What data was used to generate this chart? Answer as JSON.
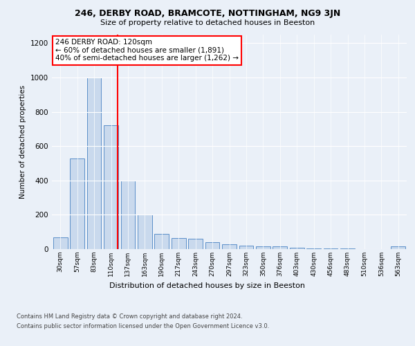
{
  "title1": "246, DERBY ROAD, BRAMCOTE, NOTTINGHAM, NG9 3JN",
  "title2": "Size of property relative to detached houses in Beeston",
  "xlabel": "Distribution of detached houses by size in Beeston",
  "ylabel": "Number of detached properties",
  "bar_labels": [
    "30sqm",
    "57sqm",
    "83sqm",
    "110sqm",
    "137sqm",
    "163sqm",
    "190sqm",
    "217sqm",
    "243sqm",
    "270sqm",
    "297sqm",
    "323sqm",
    "350sqm",
    "376sqm",
    "403sqm",
    "430sqm",
    "456sqm",
    "483sqm",
    "510sqm",
    "536sqm",
    "563sqm"
  ],
  "bar_values": [
    70,
    530,
    1000,
    720,
    400,
    200,
    90,
    65,
    60,
    40,
    30,
    20,
    15,
    15,
    10,
    5,
    5,
    5,
    2,
    2,
    15
  ],
  "bar_color": "#c9d9ed",
  "bar_edge_color": "#5b8fc9",
  "vline_color": "red",
  "vline_x_index": 3.4,
  "annotation_text": "246 DERBY ROAD: 120sqm\n← 60% of detached houses are smaller (1,891)\n40% of semi-detached houses are larger (1,262) →",
  "annotation_box_color": "white",
  "annotation_box_edge_color": "red",
  "ylim": [
    0,
    1250
  ],
  "yticks": [
    0,
    200,
    400,
    600,
    800,
    1000,
    1200
  ],
  "footer1": "Contains HM Land Registry data © Crown copyright and database right 2024.",
  "footer2": "Contains public sector information licensed under the Open Government Licence v3.0.",
  "bg_color": "#eaf0f8",
  "plot_bg_color": "#eaf0f8"
}
